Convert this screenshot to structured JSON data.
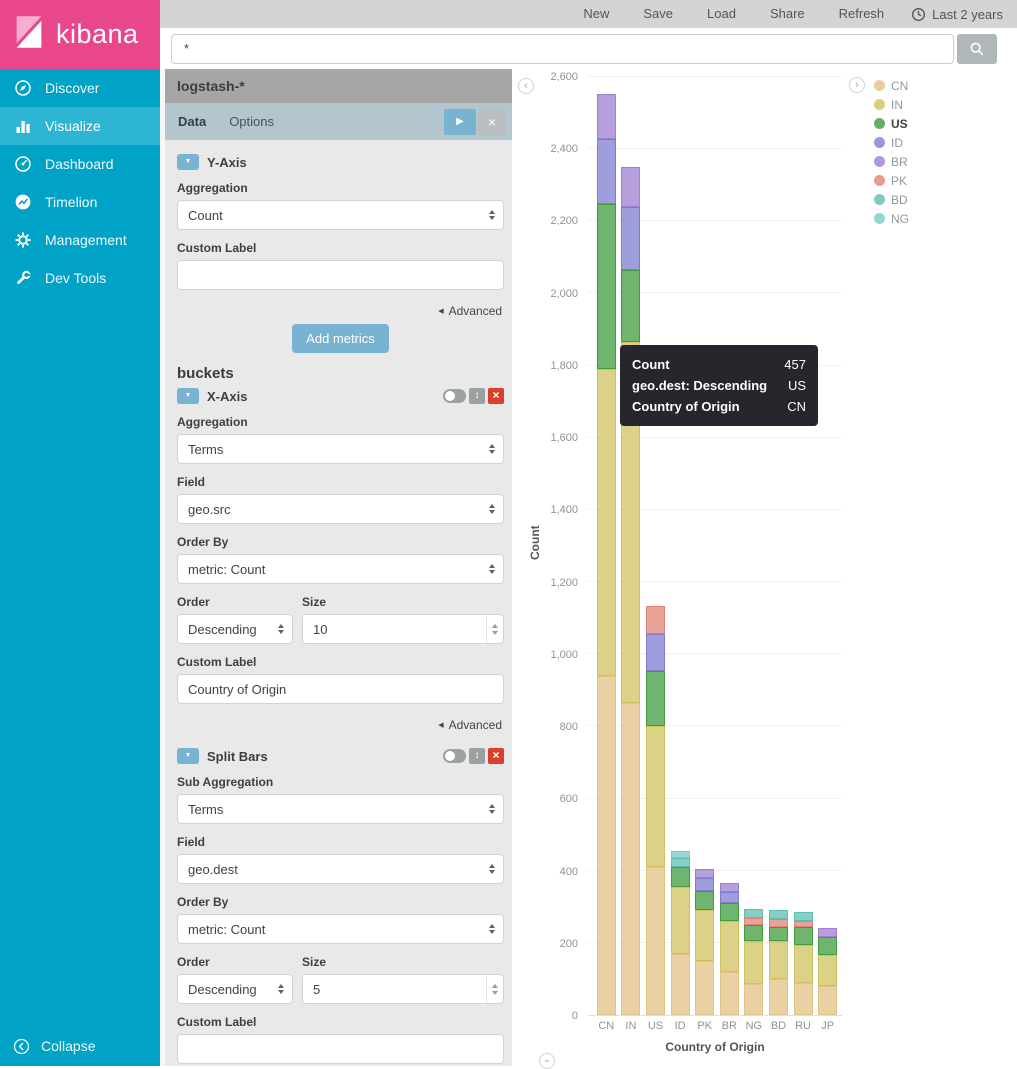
{
  "brand": {
    "name": "kibana"
  },
  "colors": {
    "brand_pink": "#e8478b",
    "sidebar": "#00a2c6",
    "sidebar_active": "#2eb5d3",
    "panel_header": "#a6a6a6",
    "tabbar": "#b3c6ce",
    "button_blue": "#79b3d2",
    "danger": "#d9402b",
    "tooltip_bg": "#26262c"
  },
  "topnav": {
    "items": [
      "New",
      "Save",
      "Load",
      "Share",
      "Refresh"
    ],
    "time_filter": "Last 2 years"
  },
  "search": {
    "value": "*"
  },
  "sidebar": {
    "items": [
      {
        "label": "Discover",
        "icon": "discover-icon",
        "active": false
      },
      {
        "label": "Visualize",
        "icon": "visualize-icon",
        "active": true
      },
      {
        "label": "Dashboard",
        "icon": "dashboard-icon",
        "active": false
      },
      {
        "label": "Timelion",
        "icon": "timelion-icon",
        "active": false
      },
      {
        "label": "Management",
        "icon": "management-icon",
        "active": false
      },
      {
        "label": "Dev Tools",
        "icon": "devtools-icon",
        "active": false
      }
    ],
    "collapse": "Collapse"
  },
  "panel": {
    "index_pattern": "logstash-*",
    "tabs": [
      "Data",
      "Options"
    ],
    "y_axis": {
      "title": "Y-Axis",
      "aggregation_label": "Aggregation",
      "aggregation": "Count",
      "custom_label_label": "Custom Label",
      "custom_label": "",
      "advanced": "Advanced",
      "add_metrics": "Add metrics"
    },
    "buckets_title": "buckets",
    "x_axis": {
      "title": "X-Axis",
      "aggregation_label": "Aggregation",
      "aggregation": "Terms",
      "field_label": "Field",
      "field": "geo.src",
      "order_by_label": "Order By",
      "order_by": "metric: Count",
      "order_label": "Order",
      "order": "Descending",
      "size_label": "Size",
      "size": "10",
      "custom_label_label": "Custom Label",
      "custom_label": "Country of Origin",
      "advanced": "Advanced"
    },
    "split_bars": {
      "title": "Split Bars",
      "sub_aggregation_label": "Sub Aggregation",
      "aggregation": "Terms",
      "field_label": "Field",
      "field": "geo.dest",
      "order_by_label": "Order By",
      "order_by": "metric: Count",
      "order_label": "Order",
      "order": "Descending",
      "size_label": "Size",
      "size": "5",
      "custom_label_label": "Custom Label",
      "custom_label": ""
    }
  },
  "tooltip": {
    "rows": [
      {
        "label": "Count",
        "value": "457"
      },
      {
        "label": "geo.dest: Descending",
        "value": "US"
      },
      {
        "label": "Country of Origin",
        "value": "CN"
      }
    ]
  },
  "chart_data": {
    "type": "bar",
    "stacked": true,
    "title": "",
    "xlabel": "Country of Origin",
    "ylabel": "Count",
    "ylim": [
      0,
      2600
    ],
    "ytick_step": 200,
    "grid": true,
    "legend_position": "right",
    "categories": [
      "CN",
      "IN",
      "US",
      "ID",
      "PK",
      "BR",
      "NG",
      "BD",
      "RU",
      "JP"
    ],
    "series": [
      {
        "name": "CN",
        "color": "#e3c285",
        "values": [
          940,
          865,
          410,
          170,
          150,
          120,
          85,
          100,
          90,
          80
        ]
      },
      {
        "name": "IN",
        "color": "#cfc15f",
        "values": [
          850,
          1000,
          390,
          185,
          140,
          140,
          120,
          105,
          105,
          85
        ]
      },
      {
        "name": "US",
        "color": "#3f9c3f",
        "values": [
          457,
          200,
          155,
          55,
          55,
          50,
          45,
          40,
          50,
          50
        ]
      },
      {
        "name": "ID",
        "color": "#7f7cd0",
        "values": [
          180,
          175,
          100,
          0,
          35,
          30,
          0,
          0,
          0,
          0
        ]
      },
      {
        "name": "BR",
        "color": "#9f7fd1",
        "values": [
          125,
          110,
          0,
          0,
          25,
          25,
          0,
          0,
          0,
          25
        ]
      },
      {
        "name": "PK",
        "color": "#df8377",
        "values": [
          0,
          0,
          80,
          0,
          0,
          0,
          20,
          20,
          15,
          0
        ]
      },
      {
        "name": "BD",
        "color": "#5fbdb4",
        "values": [
          0,
          0,
          0,
          25,
          0,
          0,
          25,
          25,
          25,
          0
        ]
      },
      {
        "name": "NG",
        "color": "#7ccac6",
        "values": [
          0,
          0,
          0,
          20,
          0,
          0,
          0,
          0,
          0,
          0
        ]
      }
    ],
    "legend": [
      "CN",
      "IN",
      "US",
      "ID",
      "BR",
      "PK",
      "BD",
      "NG"
    ],
    "legend_highlight": "US"
  }
}
